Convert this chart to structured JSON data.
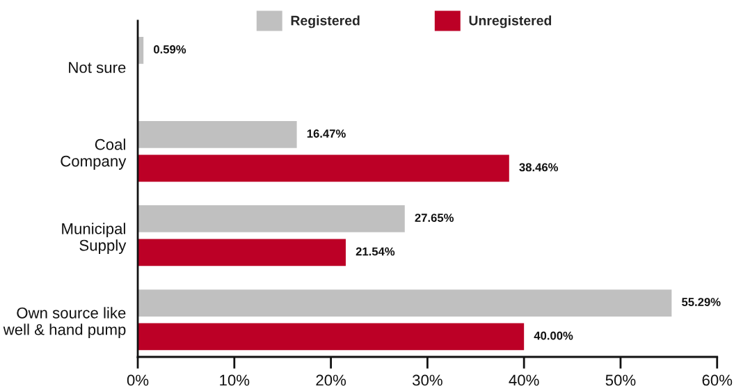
{
  "chart_data": {
    "type": "bar",
    "orientation": "horizontal",
    "legend": "top",
    "categories": [
      "Not sure",
      "Coal\nCompany",
      "Municipal\nSupply",
      "Own source like\nwell & hand pump"
    ],
    "series": [
      {
        "name": "Registered",
        "color": "#c0c0c0",
        "values": [
          0.59,
          16.47,
          27.65,
          55.29
        ],
        "value_labels": [
          "0.59%",
          "16.47%",
          "27.65%",
          "55.29%"
        ]
      },
      {
        "name": "Unregistered",
        "color": "#bc0026",
        "values": [
          null,
          38.46,
          21.54,
          40.0
        ],
        "value_labels": [
          null,
          "38.46%",
          "21.54%",
          "40.00%"
        ]
      }
    ],
    "xlim": [
      0,
      60
    ],
    "xticks": [
      {
        "value": 0,
        "label": "0%"
      },
      {
        "value": 10,
        "label": "10%"
      },
      {
        "value": 20,
        "label": "20%"
      },
      {
        "value": 30,
        "label": "30%"
      },
      {
        "value": 40,
        "label": "40%"
      },
      {
        "value": 50,
        "label": "50%"
      },
      {
        "value": 60,
        "label": "60%"
      }
    ]
  }
}
